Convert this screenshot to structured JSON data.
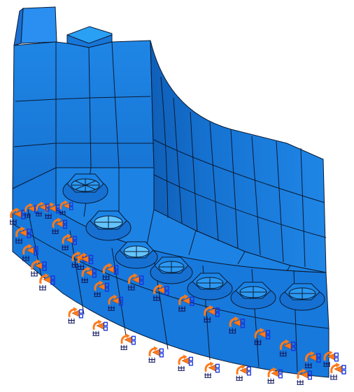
{
  "viewport": {
    "background": "#ffffff"
  },
  "model": {
    "colors": {
      "face_front": "#1a7fe0",
      "face_side": "#1673d2",
      "face_top": "#2d94ef",
      "face_dark": "#0f5fb8",
      "mesh_edge": "#0a1a33",
      "bolt": "#1b84e6",
      "bolt_highlight": "#63c4ff"
    },
    "bolt_count": 7
  },
  "boundary_conditions": {
    "colors": {
      "symbol_orange": "#ff7a1a",
      "symbol_blue": "#1535e0",
      "symbol_navy": "#141a60"
    }
  }
}
